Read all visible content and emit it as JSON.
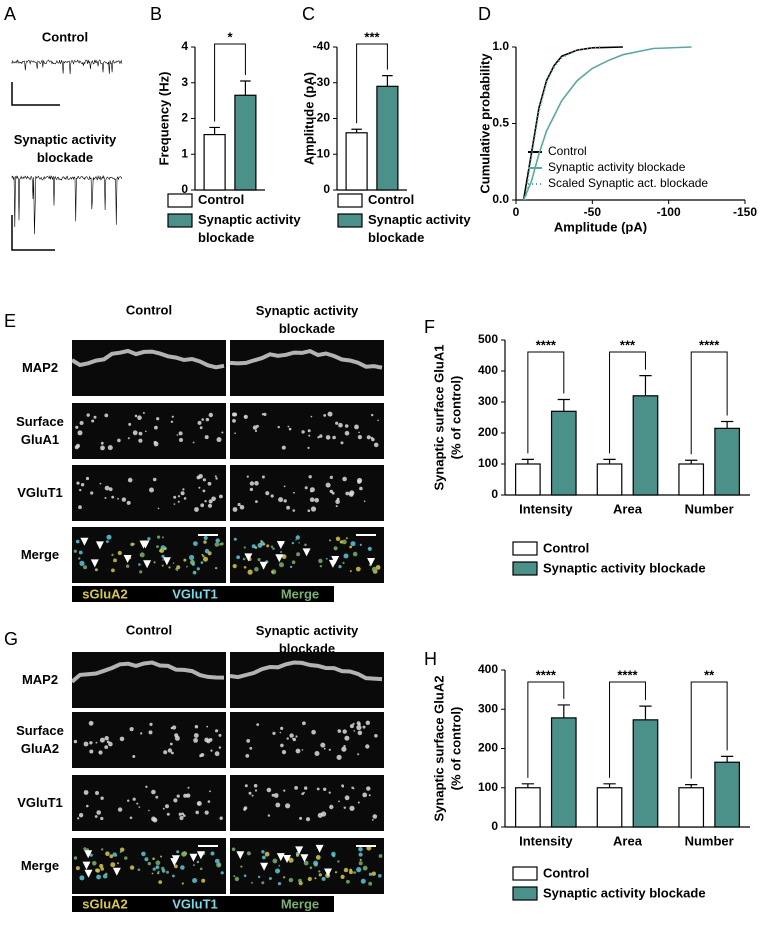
{
  "figure": {
    "panel_letters": [
      "A",
      "B",
      "C",
      "D",
      "E",
      "F",
      "G",
      "H"
    ],
    "panel_a": {
      "conditions": [
        "Control",
        "Synaptic activity blockade"
      ]
    },
    "panel_e": {
      "columns": [
        "Control",
        "Synaptic activity blockade"
      ],
      "rows": [
        "MAP2",
        "Surface GluA1",
        "VGluT1",
        "Merge"
      ],
      "legend": [
        "sGluA2",
        "VGluT1",
        "Merge"
      ]
    },
    "panel_g": {
      "columns": [
        "Control",
        "Synaptic activity blockade"
      ],
      "rows": [
        "MAP2",
        "Surface GluA2",
        "VGluT1",
        "Merge"
      ],
      "legend": [
        "sGluA2",
        "VGluT1",
        "Merge"
      ]
    }
  },
  "chart_data": [
    {
      "type": "bar",
      "ylabel": "Frequency (Hz)",
      "ylim": [
        0,
        4
      ],
      "yticks": [
        0,
        1,
        2,
        3,
        4
      ],
      "series": [
        {
          "name": "Control",
          "color": "#ffffff",
          "values": [
            1.55
          ],
          "errors": [
            0.2
          ]
        },
        {
          "name": "Synaptic activity blockade",
          "color": "#4b9089",
          "values": [
            2.65
          ],
          "errors": [
            0.4
          ]
        }
      ],
      "significance": [
        "*"
      ]
    },
    {
      "type": "bar",
      "ylabel": "Amplitude (pA)",
      "ylim": [
        0,
        -40
      ],
      "yticks": [
        0,
        -10,
        -20,
        -30,
        -40
      ],
      "series": [
        {
          "name": "Control",
          "color": "#ffffff",
          "values": [
            -16
          ],
          "errors": [
            1
          ]
        },
        {
          "name": "Synaptic activity blockade",
          "color": "#4b9089",
          "values": [
            -29
          ],
          "errors": [
            3
          ]
        }
      ],
      "significance": [
        "***"
      ]
    },
    {
      "type": "line",
      "xlabel": "Amplitude (pA)",
      "ylabel": "Cumulative probability",
      "xlim": [
        0,
        -150
      ],
      "xticks": [
        0,
        -50,
        -100,
        -150
      ],
      "ylim": [
        0,
        1
      ],
      "yticks": [
        {
          "value": 0,
          "label": "0.0"
        },
        0.5,
        {
          "value": 1,
          "label": "1.0"
        }
      ],
      "series": [
        {
          "name": "Control",
          "color": "#000000",
          "style": "solid",
          "x": [
            -5,
            -10,
            -15,
            -20,
            -25,
            -30,
            -40,
            -50,
            -70
          ],
          "values": [
            0,
            0.3,
            0.6,
            0.78,
            0.88,
            0.94,
            0.98,
            0.995,
            1
          ]
        },
        {
          "name": "Synaptic activity blockade",
          "color": "#5aa8a0",
          "style": "solid",
          "x": [
            -5,
            -10,
            -15,
            -20,
            -30,
            -40,
            -50,
            -60,
            -70,
            -90,
            -115
          ],
          "values": [
            0,
            0.12,
            0.3,
            0.45,
            0.65,
            0.78,
            0.86,
            0.91,
            0.95,
            0.99,
            1
          ]
        },
        {
          "name": "Scaled Synaptic act. blockade",
          "color": "#5aa8a0",
          "style": "dotted",
          "x": [
            -6,
            -10,
            -15,
            -20,
            -25,
            -30,
            -40,
            -55
          ],
          "values": [
            0,
            0.28,
            0.58,
            0.77,
            0.87,
            0.93,
            0.98,
            1
          ]
        }
      ]
    },
    {
      "type": "bar",
      "ylabel": [
        "Synaptic surface GluA1",
        "(% of control)"
      ],
      "categories": [
        "Intensity",
        "Area",
        "Number"
      ],
      "ylim": [
        0,
        500
      ],
      "yticks": [
        0,
        100,
        200,
        300,
        400,
        500
      ],
      "series": [
        {
          "name": "Control",
          "color": "#ffffff",
          "values": [
            100,
            100,
            100
          ],
          "errors": [
            15,
            15,
            12
          ]
        },
        {
          "name": "Synaptic activity blockade",
          "color": "#4b9089",
          "values": [
            270,
            320,
            215
          ],
          "errors": [
            38,
            65,
            22
          ]
        }
      ],
      "significance": [
        "****",
        "***",
        "****"
      ]
    },
    {
      "type": "bar",
      "ylabel": [
        "Synaptic surface GluA2",
        "(% of control)"
      ],
      "categories": [
        "Intensity",
        "Area",
        "Number"
      ],
      "ylim": [
        0,
        400
      ],
      "yticks": [
        0,
        100,
        200,
        300,
        400
      ],
      "series": [
        {
          "name": "Control",
          "color": "#ffffff",
          "values": [
            100,
            100,
            100
          ],
          "errors": [
            10,
            10,
            8
          ]
        },
        {
          "name": "Synaptic activity blockade",
          "color": "#4b9089",
          "values": [
            278,
            273,
            165
          ],
          "errors": [
            33,
            35,
            15
          ]
        }
      ],
      "significance": [
        "****",
        "****",
        "**"
      ]
    }
  ]
}
